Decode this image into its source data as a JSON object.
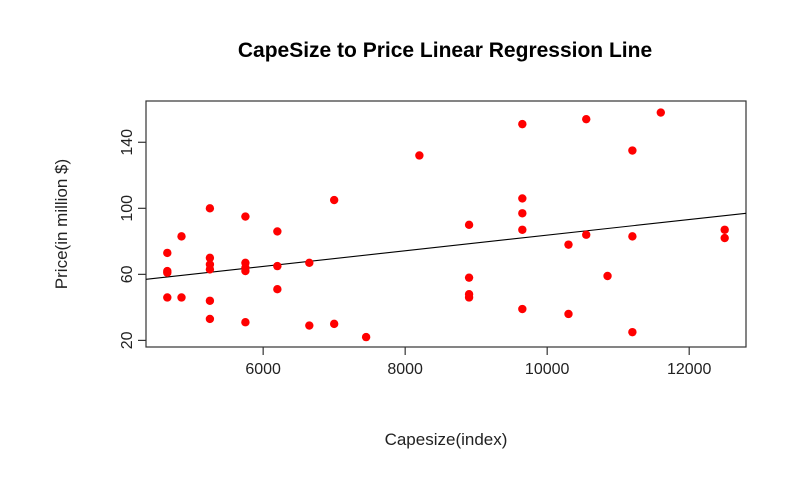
{
  "chart_data": {
    "type": "scatter",
    "title": "CapeSize to Price Linear Regression Line",
    "xlabel": "Capesize(index)",
    "ylabel": "Price(in million $)",
    "xlim": [
      4350,
      12800
    ],
    "ylim": [
      16,
      165
    ],
    "x_ticks": [
      6000,
      8000,
      10000,
      12000
    ],
    "y_ticks": [
      20,
      60,
      100,
      140
    ],
    "point_color": "#ff0000",
    "line_color": "#000000",
    "grid": false,
    "regression_line": {
      "x": [
        4350,
        12800
      ],
      "y": [
        57,
        97
      ]
    },
    "points": [
      {
        "x": 4650,
        "y": 73
      },
      {
        "x": 4650,
        "y": 62
      },
      {
        "x": 4650,
        "y": 61
      },
      {
        "x": 4650,
        "y": 46
      },
      {
        "x": 4850,
        "y": 83
      },
      {
        "x": 4850,
        "y": 46
      },
      {
        "x": 5250,
        "y": 100
      },
      {
        "x": 5250,
        "y": 70
      },
      {
        "x": 5250,
        "y": 66
      },
      {
        "x": 5250,
        "y": 63
      },
      {
        "x": 5250,
        "y": 44
      },
      {
        "x": 5250,
        "y": 33
      },
      {
        "x": 5750,
        "y": 95
      },
      {
        "x": 5750,
        "y": 67
      },
      {
        "x": 5750,
        "y": 64
      },
      {
        "x": 5750,
        "y": 62
      },
      {
        "x": 5750,
        "y": 31
      },
      {
        "x": 6200,
        "y": 86
      },
      {
        "x": 6200,
        "y": 65
      },
      {
        "x": 6200,
        "y": 51
      },
      {
        "x": 6650,
        "y": 67
      },
      {
        "x": 6650,
        "y": 29
      },
      {
        "x": 7000,
        "y": 105
      },
      {
        "x": 7000,
        "y": 30
      },
      {
        "x": 7450,
        "y": 22
      },
      {
        "x": 8200,
        "y": 132
      },
      {
        "x": 8900,
        "y": 90
      },
      {
        "x": 8900,
        "y": 58
      },
      {
        "x": 8900,
        "y": 48
      },
      {
        "x": 8900,
        "y": 46
      },
      {
        "x": 9650,
        "y": 151
      },
      {
        "x": 9650,
        "y": 106
      },
      {
        "x": 9650,
        "y": 97
      },
      {
        "x": 9650,
        "y": 87
      },
      {
        "x": 9650,
        "y": 39
      },
      {
        "x": 10300,
        "y": 78
      },
      {
        "x": 10300,
        "y": 36
      },
      {
        "x": 10550,
        "y": 154
      },
      {
        "x": 10550,
        "y": 84
      },
      {
        "x": 10850,
        "y": 59
      },
      {
        "x": 11200,
        "y": 135
      },
      {
        "x": 11200,
        "y": 83
      },
      {
        "x": 11200,
        "y": 25
      },
      {
        "x": 11600,
        "y": 158
      },
      {
        "x": 12500,
        "y": 87
      },
      {
        "x": 12500,
        "y": 82
      }
    ]
  }
}
